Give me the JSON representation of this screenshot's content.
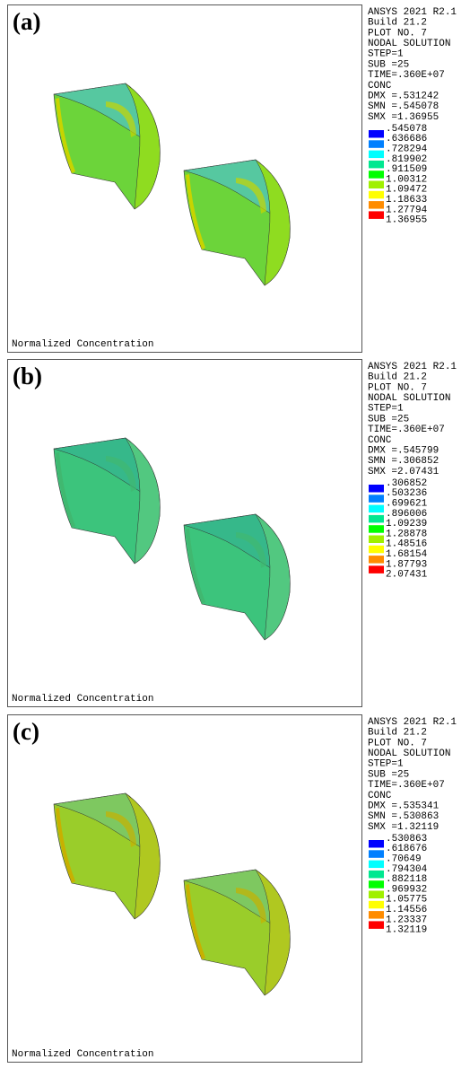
{
  "panels": [
    {
      "label": "(a)",
      "header": [
        "ANSYS 2021 R2.1",
        "Build 21.2",
        "PLOT NO.   7",
        "NODAL SOLUTION",
        "STEP=1",
        "SUB =25",
        "TIME=.360E+07",
        "CONC",
        "DMX =.531242",
        "SMN =.545078",
        "SMX =1.36955"
      ],
      "legend": [
        ".545078",
        ".636686",
        ".728294",
        ".819902",
        ".911509",
        "1.00312",
        "1.09472",
        "1.18633",
        "1.27794",
        "1.36955"
      ],
      "caption": "Normalized Concentration"
    },
    {
      "label": "(b)",
      "header": [
        "ANSYS 2021 R2.1",
        "Build 21.2",
        "PLOT NO.   7",
        "NODAL SOLUTION",
        "STEP=1",
        "SUB =25",
        "TIME=.360E+07",
        "CONC",
        "DMX =.545799",
        "SMN =.306852",
        "SMX =2.07431"
      ],
      "legend": [
        ".306852",
        ".503236",
        ".699621",
        ".896006",
        "1.09239",
        "1.28878",
        "1.48516",
        "1.68154",
        "1.87793",
        "2.07431"
      ],
      "caption": "Normalized Concentration"
    },
    {
      "label": "(c)",
      "header": [
        "ANSYS 2021 R2.1",
        "Build 21.2",
        "PLOT NO.   7",
        "NODAL SOLUTION",
        "STEP=1",
        "SUB =25",
        "TIME=.360E+07",
        "CONC",
        "DMX =.535341",
        "SMN =.530863",
        "SMX =1.32119"
      ],
      "legend": [
        ".530863",
        ".618676",
        ".70649",
        ".794304",
        ".882118",
        ".969932",
        "1.05775",
        "1.14556",
        "1.23337",
        "1.32119"
      ],
      "caption": "Normalized Concentration"
    }
  ],
  "legend_colors": [
    "#0000ff",
    "#0080ff",
    "#00ffff",
    "#00e890",
    "#00ff00",
    "#a0f000",
    "#ffff00",
    "#ff8c00",
    "#ff0000"
  ]
}
